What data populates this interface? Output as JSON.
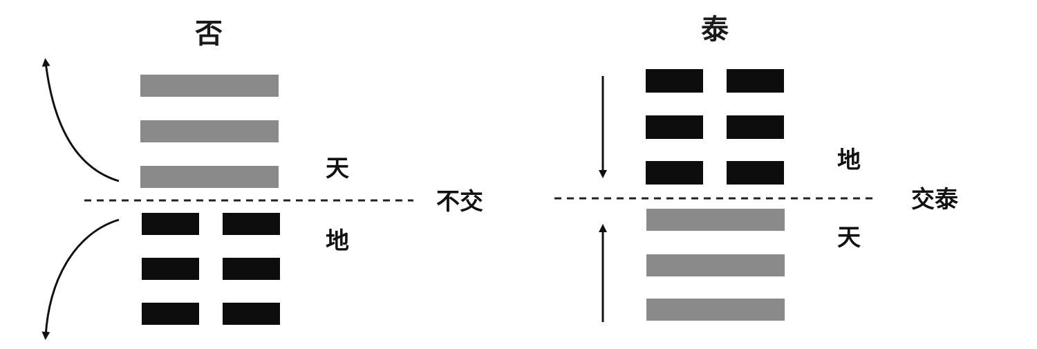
{
  "left_hexagram": {
    "title": "否",
    "upper_trigram_label": "天",
    "lower_trigram_label": "地",
    "divider_label": "不交",
    "upper_trigram_lines": [
      "yang",
      "yang",
      "yang"
    ],
    "lower_trigram_lines": [
      "yin",
      "yin",
      "yin"
    ]
  },
  "right_hexagram": {
    "title": "泰",
    "upper_trigram_label": "地",
    "lower_trigram_label": "天",
    "divider_label": "交泰",
    "upper_trigram_lines": [
      "yin",
      "yin",
      "yin"
    ],
    "lower_trigram_lines": [
      "yang",
      "yang",
      "yang"
    ]
  },
  "colors": {
    "yang_line": "#8a8a8a",
    "yin_line": "#0d0d0d"
  }
}
